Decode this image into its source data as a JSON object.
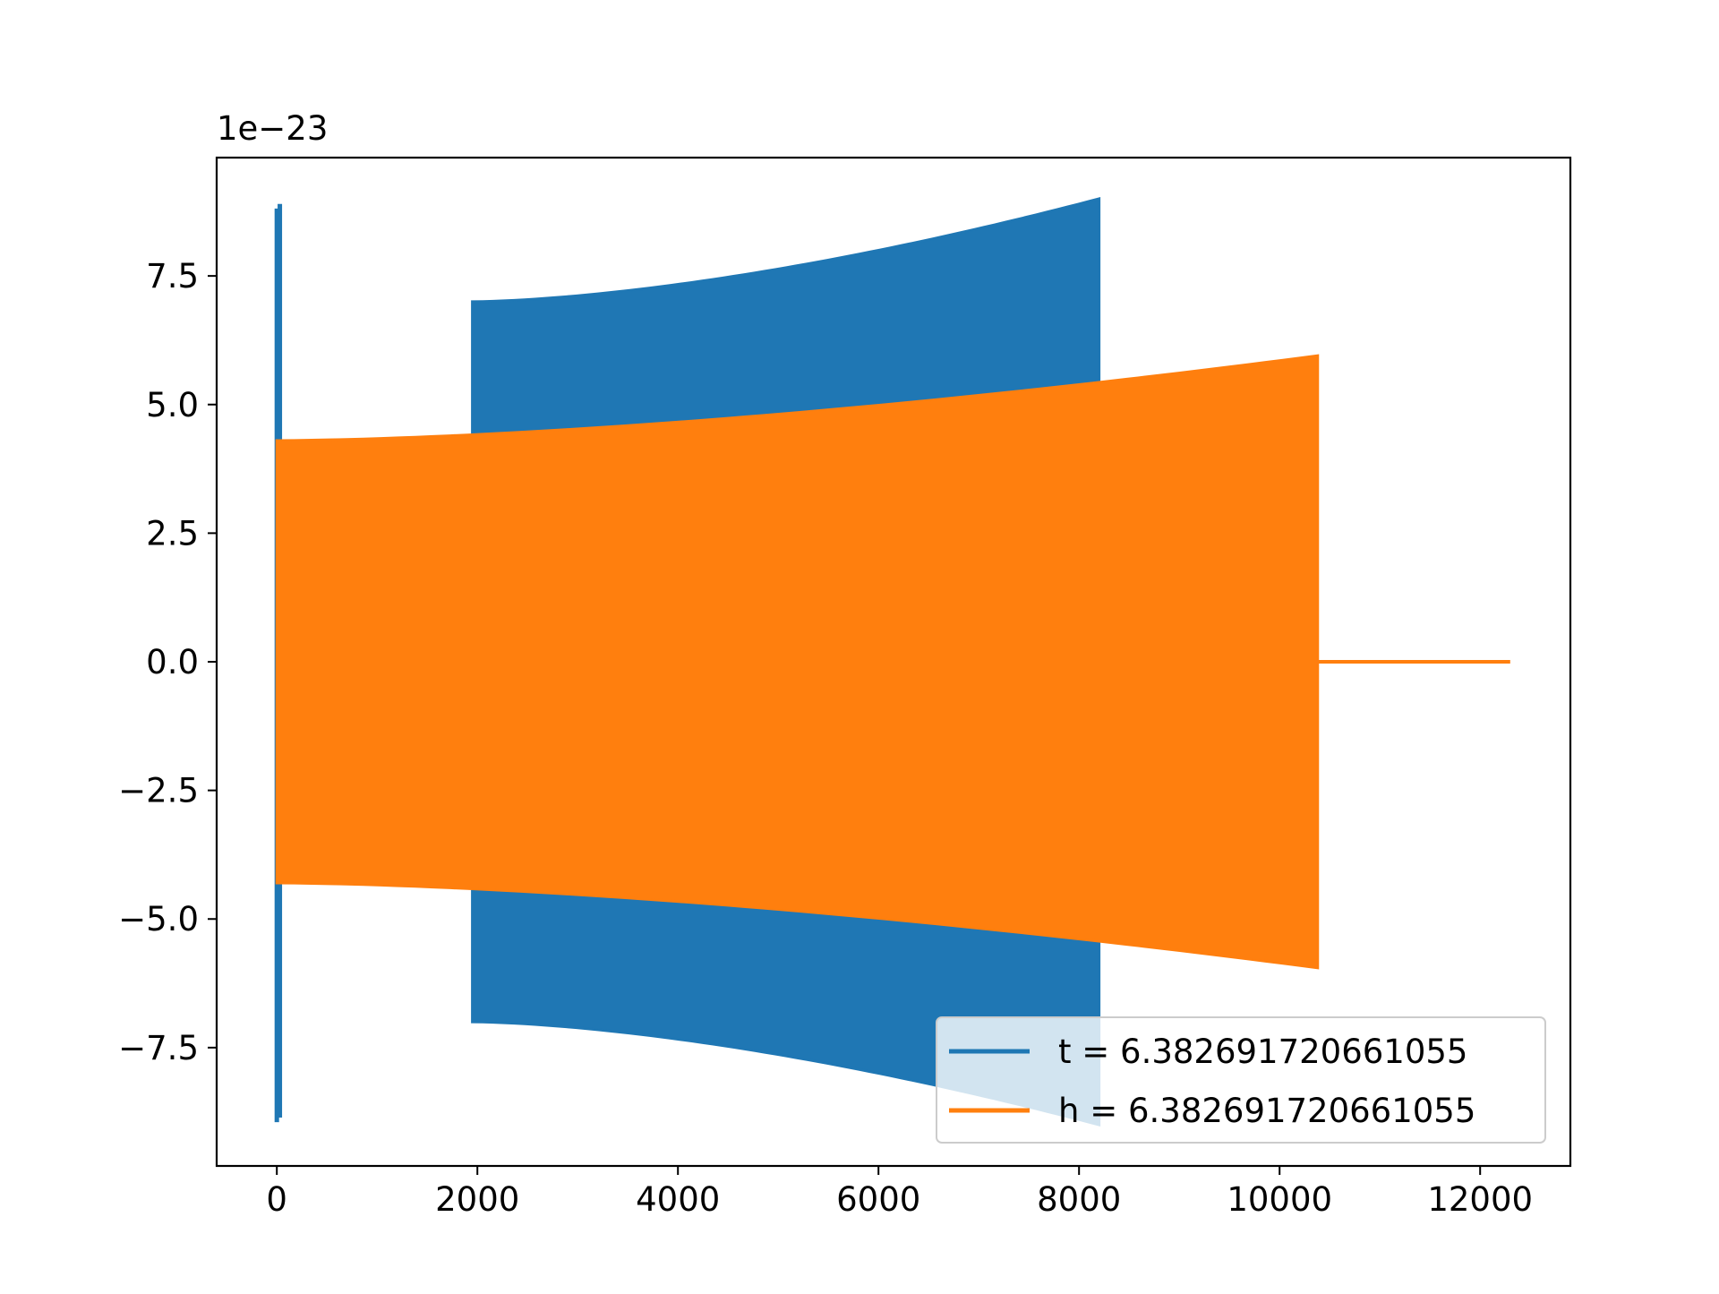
{
  "chart_data": {
    "type": "line",
    "title": "",
    "xlabel": "",
    "ylabel": "",
    "y_offset_label": "1e−23",
    "xlim": [
      -600,
      12900
    ],
    "ylim": [
      -9.8,
      9.8
    ],
    "x_ticks": [
      0,
      2000,
      4000,
      6000,
      8000,
      10000,
      12000
    ],
    "x_tick_labels": [
      "0",
      "2000",
      "4000",
      "6000",
      "8000",
      "10000",
      "12000"
    ],
    "y_ticks": [
      7.5,
      5.0,
      2.5,
      0.0,
      -2.5,
      -5.0,
      -7.5
    ],
    "y_tick_labels": [
      "7.5",
      "5.0",
      "2.5",
      "0.0",
      "−2.5",
      "−5.0",
      "−7.5"
    ],
    "grid": false,
    "legend_position": "lower-right",
    "series": [
      {
        "name": "t = 6.382691720661055",
        "color": "#1f77b4",
        "segments": [
          {
            "kind": "spike",
            "x": [
              0,
              30
            ],
            "y_max": 8.9,
            "y_min": -8.95
          },
          {
            "kind": "oscillation_band",
            "x": [
              1950,
              8200
            ],
            "envelope_start": [
              7.0,
              -7.0
            ],
            "envelope_end": [
              9.0,
              -9.0
            ]
          }
        ]
      },
      {
        "name": "h = 6.382691720661055",
        "color": "#ff7f0e",
        "segments": [
          {
            "kind": "oscillation_band",
            "x": [
              0,
              10380
            ],
            "envelope_start": [
              4.3,
              -4.3
            ],
            "envelope_end": [
              5.95,
              -5.95
            ]
          },
          {
            "kind": "flat",
            "x": [
              10380,
              12300
            ],
            "y": 0.0
          }
        ]
      }
    ]
  }
}
